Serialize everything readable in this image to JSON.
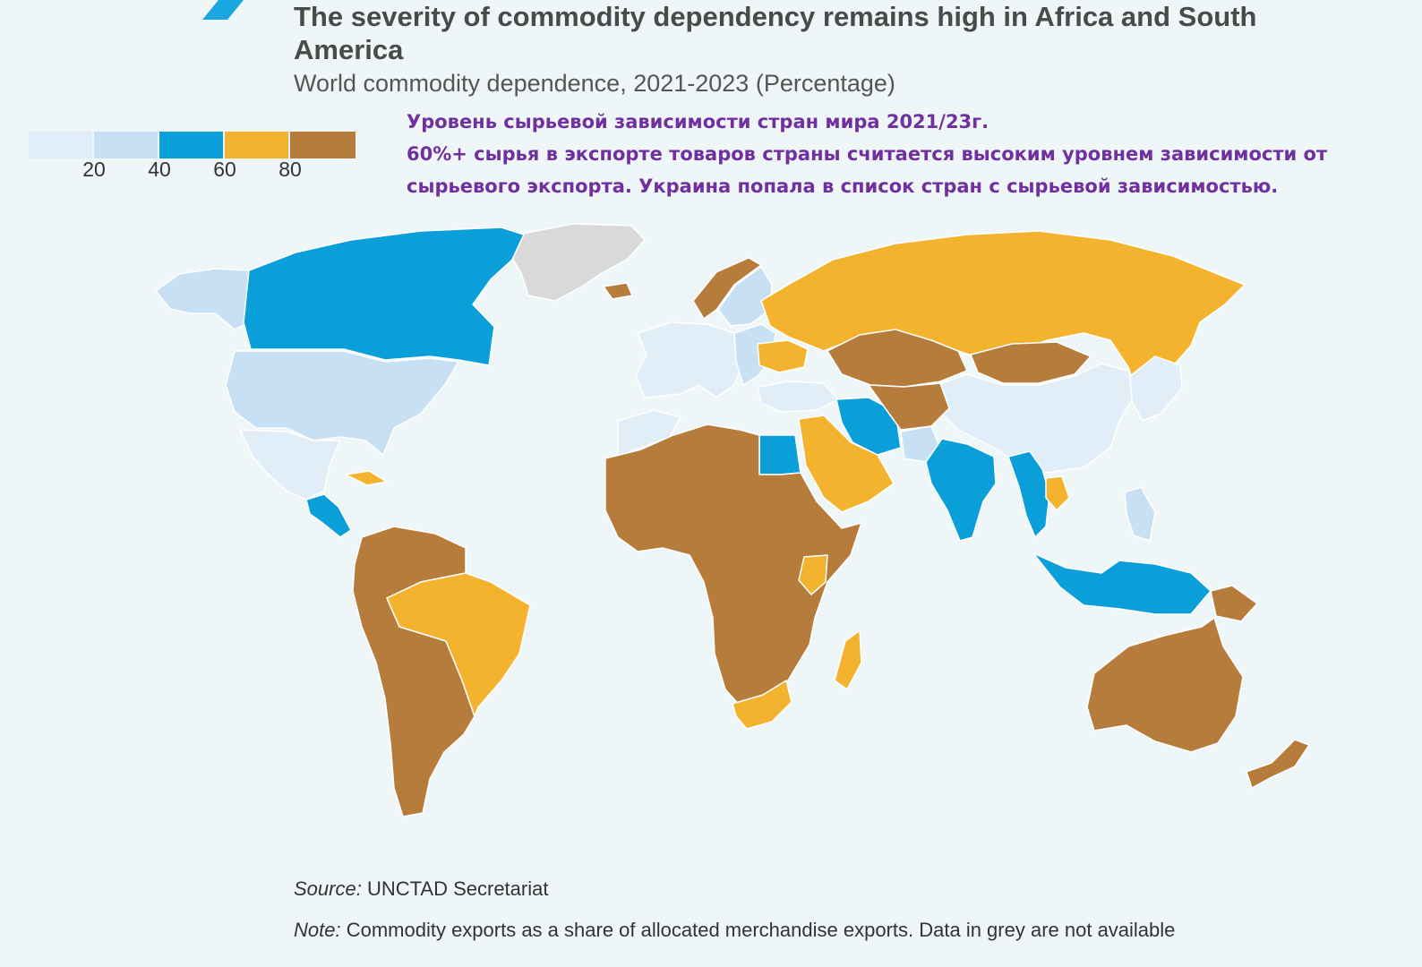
{
  "title": "The severity of commodity dependency remains high in Africa and South America",
  "subtitle": "World commodity dependence, 2021-2023 (Percentage)",
  "annotation": {
    "line1": "Уровень сырьевой зависимости стран мира 2021/23г.",
    "line2": "60%+ сырья в экспорте товаров страны считается высоким уровнем зависимости от",
    "line3": "сырьевого экспорта. Украина попала в список стран с сырьевой зависимостью."
  },
  "legend": {
    "ticks": [
      "20",
      "40",
      "60",
      "80"
    ],
    "bins": [
      {
        "range": "0-20",
        "color": "#e2eef7"
      },
      {
        "range": "20-40",
        "color": "#c8e0f3"
      },
      {
        "range": "40-60",
        "color": "#0a9fd8"
      },
      {
        "range": "60-80",
        "color": "#f4b32e"
      },
      {
        "range": "80-100",
        "color": "#b57c3c"
      }
    ],
    "not_available_color": "#d9d9d9"
  },
  "source": {
    "label": "Source:",
    "text": " UNCTAD Secretariat"
  },
  "note": {
    "label": "Note:",
    "text": " Commodity exports as a share of allocated merchandise exports. Data in grey are not available"
  },
  "colors": {
    "accent": "#1aa6e0",
    "background": "#eef6f8",
    "ocean": "#eef6f8",
    "annotation": "#7030a0"
  },
  "map_regions": [
    {
      "name": "greenland",
      "bin": "n/a"
    },
    {
      "name": "alaska",
      "bin": "20-40"
    },
    {
      "name": "canada",
      "bin": "40-60"
    },
    {
      "name": "united-states",
      "bin": "20-40"
    },
    {
      "name": "mexico",
      "bin": "0-20"
    },
    {
      "name": "central-america",
      "bin": "40-60"
    },
    {
      "name": "cuba",
      "bin": "60-80"
    },
    {
      "name": "brazil",
      "bin": "60-80"
    },
    {
      "name": "south-america-west",
      "bin": "80-100"
    },
    {
      "name": "iceland",
      "bin": "80-100"
    },
    {
      "name": "norway",
      "bin": "80-100"
    },
    {
      "name": "sweden-finland",
      "bin": "20-40"
    },
    {
      "name": "western-europe",
      "bin": "0-20"
    },
    {
      "name": "eastern-europe",
      "bin": "20-40"
    },
    {
      "name": "ukraine",
      "bin": "60-80"
    },
    {
      "name": "russia",
      "bin": "60-80"
    },
    {
      "name": "kazakhstan",
      "bin": "80-100"
    },
    {
      "name": "mongolia",
      "bin": "80-100"
    },
    {
      "name": "china",
      "bin": "0-20"
    },
    {
      "name": "turkey",
      "bin": "0-20"
    },
    {
      "name": "iran",
      "bin": "40-60"
    },
    {
      "name": "central-asia-afghanistan",
      "bin": "80-100"
    },
    {
      "name": "arabia",
      "bin": "60-80"
    },
    {
      "name": "egypt",
      "bin": "40-60"
    },
    {
      "name": "north-west-africa",
      "bin": "0-20"
    },
    {
      "name": "africa",
      "bin": "80-100"
    },
    {
      "name": "kenya",
      "bin": "60-80"
    },
    {
      "name": "south-africa",
      "bin": "60-80"
    },
    {
      "name": "madagascar",
      "bin": "60-80"
    },
    {
      "name": "india",
      "bin": "40-60"
    },
    {
      "name": "pakistan",
      "bin": "20-40"
    },
    {
      "name": "mainland-southeast-asia",
      "bin": "40-60"
    },
    {
      "name": "laos",
      "bin": "60-80"
    },
    {
      "name": "japan-korea",
      "bin": "0-20"
    },
    {
      "name": "philippines",
      "bin": "20-40"
    },
    {
      "name": "indonesia",
      "bin": "40-60"
    },
    {
      "name": "papua-new-guinea",
      "bin": "80-100"
    },
    {
      "name": "australia",
      "bin": "80-100"
    },
    {
      "name": "new-zealand",
      "bin": "80-100"
    }
  ]
}
